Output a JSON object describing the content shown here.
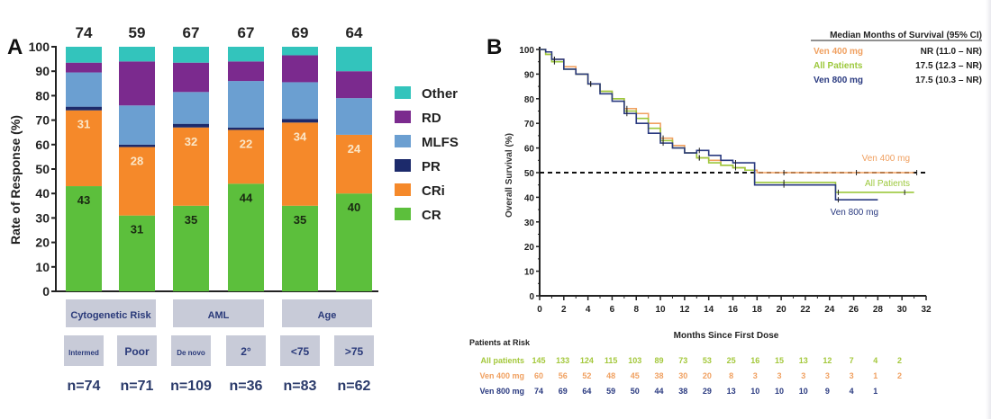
{
  "chart_data": [
    {
      "type": "bar",
      "stacked": true,
      "panel_label": "A",
      "title": "",
      "xlabel": "",
      "ylabel": "Rate of Response (%)",
      "ylim": [
        0,
        100
      ],
      "yticks": [
        0,
        10,
        20,
        30,
        40,
        50,
        60,
        70,
        80,
        90,
        100
      ],
      "categories": [
        "Intermed",
        "Poor",
        "De novo",
        "2°",
        "<75",
        ">75"
      ],
      "group_labels": [
        {
          "label": "Cytogenetic Risk",
          "categories": [
            "Intermed",
            "Poor"
          ]
        },
        {
          "label": "AML",
          "categories": [
            "De novo",
            "2°"
          ]
        },
        {
          "label": "Age",
          "categories": [
            "<75",
            ">75"
          ]
        }
      ],
      "n_labels": [
        "n=74",
        "n=71",
        "n=109",
        "n=36",
        "n=83",
        "n=62"
      ],
      "top_labels": [
        "74",
        "59",
        "67",
        "67",
        "69",
        "64"
      ],
      "series": [
        {
          "name": "CR",
          "color": "#5cbf3c",
          "values": [
            43,
            31,
            35,
            44,
            35,
            40
          ],
          "show_labels": true,
          "label_color": "#1a2a12"
        },
        {
          "name": "CRi",
          "color": "#f5892a",
          "values": [
            31,
            28,
            32,
            22,
            34,
            24
          ],
          "show_labels": true,
          "label_color": "#fbe7c8"
        },
        {
          "name": "PR",
          "color": "#1c2a6b",
          "values": [
            1.5,
            1,
            1.5,
            1,
            1.5,
            0
          ],
          "show_labels": false
        },
        {
          "name": "MLFS",
          "color": "#6b9fd1",
          "values": [
            14,
            16,
            13,
            19,
            15,
            15
          ],
          "show_labels": false
        },
        {
          "name": "RD",
          "color": "#7b2a8e",
          "values": [
            4,
            18,
            12,
            8,
            11,
            11
          ],
          "show_labels": false
        },
        {
          "name": "Other",
          "color": "#33c4bc",
          "values": [
            6.5,
            6,
            6.5,
            6,
            3.5,
            10
          ],
          "show_labels": false
        }
      ],
      "legend": {
        "placement": "right",
        "order": [
          "Other",
          "RD",
          "MLFS",
          "PR",
          "CRi",
          "CR"
        ]
      },
      "grid": false
    },
    {
      "type": "line",
      "step": true,
      "panel_label": "B",
      "title": "",
      "xlabel": "Months Since First Dose",
      "ylabel": "Overall Survival (%)",
      "xlim": [
        0,
        32
      ],
      "ylim": [
        0,
        100
      ],
      "xticks": [
        0,
        2,
        4,
        6,
        8,
        10,
        12,
        14,
        16,
        18,
        20,
        22,
        24,
        26,
        28,
        30,
        32
      ],
      "yticks": [
        0,
        10,
        20,
        30,
        40,
        50,
        60,
        70,
        80,
        90,
        100
      ],
      "reference_line": {
        "y": 50,
        "style": "dashed"
      },
      "grid": false,
      "series": [
        {
          "name": "Ven 400 mg",
          "color": "#f0a060",
          "x": [
            0,
            0.5,
            1,
            2,
            3,
            4,
            5,
            6,
            7,
            8,
            9,
            10,
            11,
            12,
            13,
            14,
            15,
            16,
            17,
            18,
            20,
            22,
            24,
            26,
            28,
            30,
            31
          ],
          "y": [
            100,
            98,
            96,
            93,
            90,
            86,
            83,
            80,
            76,
            74,
            70,
            64,
            61,
            58,
            56,
            55,
            53,
            52,
            51,
            50,
            50,
            50,
            50,
            50,
            50,
            50,
            50
          ],
          "end_label": "Ven 400 mg"
        },
        {
          "name": "All Patients",
          "color": "#9cc83c",
          "x": [
            0,
            0.5,
            1,
            2,
            3,
            4,
            5,
            6,
            7,
            8,
            9,
            10,
            11,
            12,
            13,
            14,
            15,
            16,
            17,
            17.8,
            20,
            22,
            24,
            24.5,
            26,
            28,
            30,
            31
          ],
          "y": [
            100,
            98,
            95,
            92,
            90,
            86,
            83,
            80,
            75,
            72,
            68,
            63,
            60,
            58,
            56,
            54,
            53,
            52,
            51,
            46,
            46,
            46,
            46,
            42,
            42,
            42,
            42,
            42
          ],
          "end_label": "All Patients"
        },
        {
          "name": "Ven 800 mg",
          "color": "#2a3a80",
          "x": [
            0,
            0.5,
            1,
            2,
            3,
            4,
            5,
            6,
            7,
            8,
            9,
            10,
            11,
            12,
            13,
            14,
            15,
            16,
            17,
            17.8,
            20,
            22,
            24,
            24.5,
            26,
            28
          ],
          "y": [
            100,
            99,
            96,
            92,
            90,
            86,
            82,
            79,
            74,
            70,
            66,
            62,
            60,
            58,
            59,
            57,
            55,
            54,
            54,
            45,
            45,
            45,
            45,
            39,
            39,
            39
          ],
          "end_label": "Ven 800 mg"
        }
      ],
      "median_table": {
        "header": "Median Months of Survival (95% CI)",
        "rows": [
          {
            "label": "Ven 400 mg",
            "value": "NR (11.0 – NR)",
            "color": "#f0a060"
          },
          {
            "label": "All Patients",
            "value": "17.5 (12.3 – NR)",
            "color": "#9cc83c"
          },
          {
            "label": "Ven 800 mg",
            "value": "17.5 (10.3 – NR)",
            "color": "#2a3a80"
          }
        ]
      },
      "risk_table": {
        "title": "Patients at Risk",
        "rows": [
          {
            "label": "All patients",
            "color": "#a4c83c",
            "values": [
              "145",
              "133",
              "124",
              "115",
              "103",
              "89",
              "73",
              "53",
              "25",
              "16",
              "15",
              "13",
              "12",
              "7",
              "4",
              "2"
            ]
          },
          {
            "label": "Ven 400 mg",
            "color": "#f0a060",
            "values": [
              "60",
              "56",
              "52",
              "48",
              "45",
              "38",
              "30",
              "20",
              "8",
              "3",
              "3",
              "3",
              "3",
              "3",
              "1",
              "2"
            ]
          },
          {
            "label": "Ven 800 mg",
            "color": "#2a3a80",
            "values": [
              "74",
              "69",
              "64",
              "59",
              "50",
              "44",
              "38",
              "29",
              "13",
              "10",
              "10",
              "10",
              "9",
              "4",
              "1"
            ]
          }
        ]
      }
    }
  ]
}
